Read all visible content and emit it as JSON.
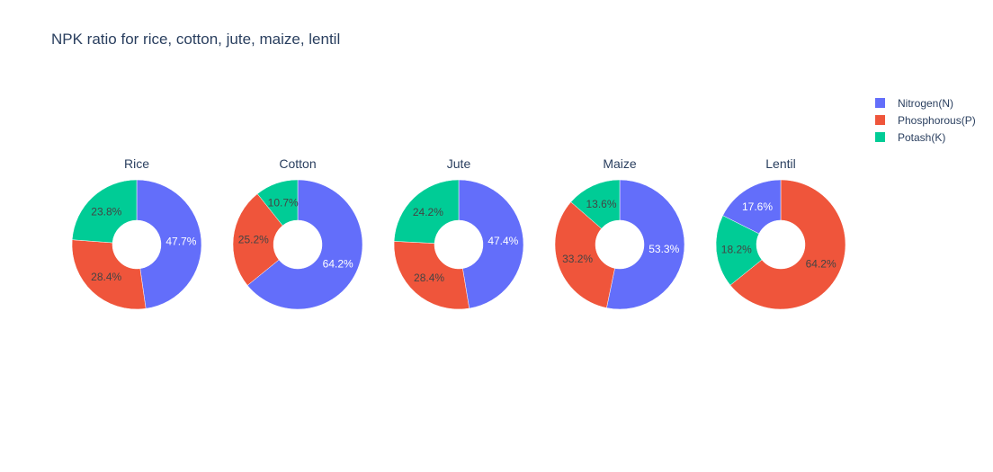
{
  "chart_data": {
    "type": "pie",
    "title": "NPK ratio for rice, cotton, jute, maize, lentil",
    "donut": true,
    "legend_position": "top-right",
    "series_names": [
      "Nitrogen(N)",
      "Phosphorous(P)",
      "Potash(K)"
    ],
    "colors": [
      "#636efa",
      "#ef553b",
      "#00cc96"
    ],
    "pies": [
      {
        "name": "Rice",
        "values": [
          47.7,
          28.4,
          23.8
        ],
        "labels": [
          "47.7%",
          "28.4%",
          "23.8%"
        ]
      },
      {
        "name": "Cotton",
        "values": [
          64.2,
          25.2,
          10.7
        ],
        "labels": [
          "64.2%",
          "25.2%",
          "10.7%"
        ]
      },
      {
        "name": "Jute",
        "values": [
          47.4,
          28.4,
          24.2
        ],
        "labels": [
          "47.4%",
          "28.4%",
          "24.2%"
        ]
      },
      {
        "name": "Maize",
        "values": [
          53.3,
          33.2,
          13.6
        ],
        "labels": [
          "53.3%",
          "33.2%",
          "13.6%"
        ]
      },
      {
        "name": "Lentil",
        "values": [
          17.6,
          64.2,
          18.2
        ],
        "labels": [
          "17.6%",
          "64.2%",
          "18.2%"
        ]
      }
    ]
  }
}
